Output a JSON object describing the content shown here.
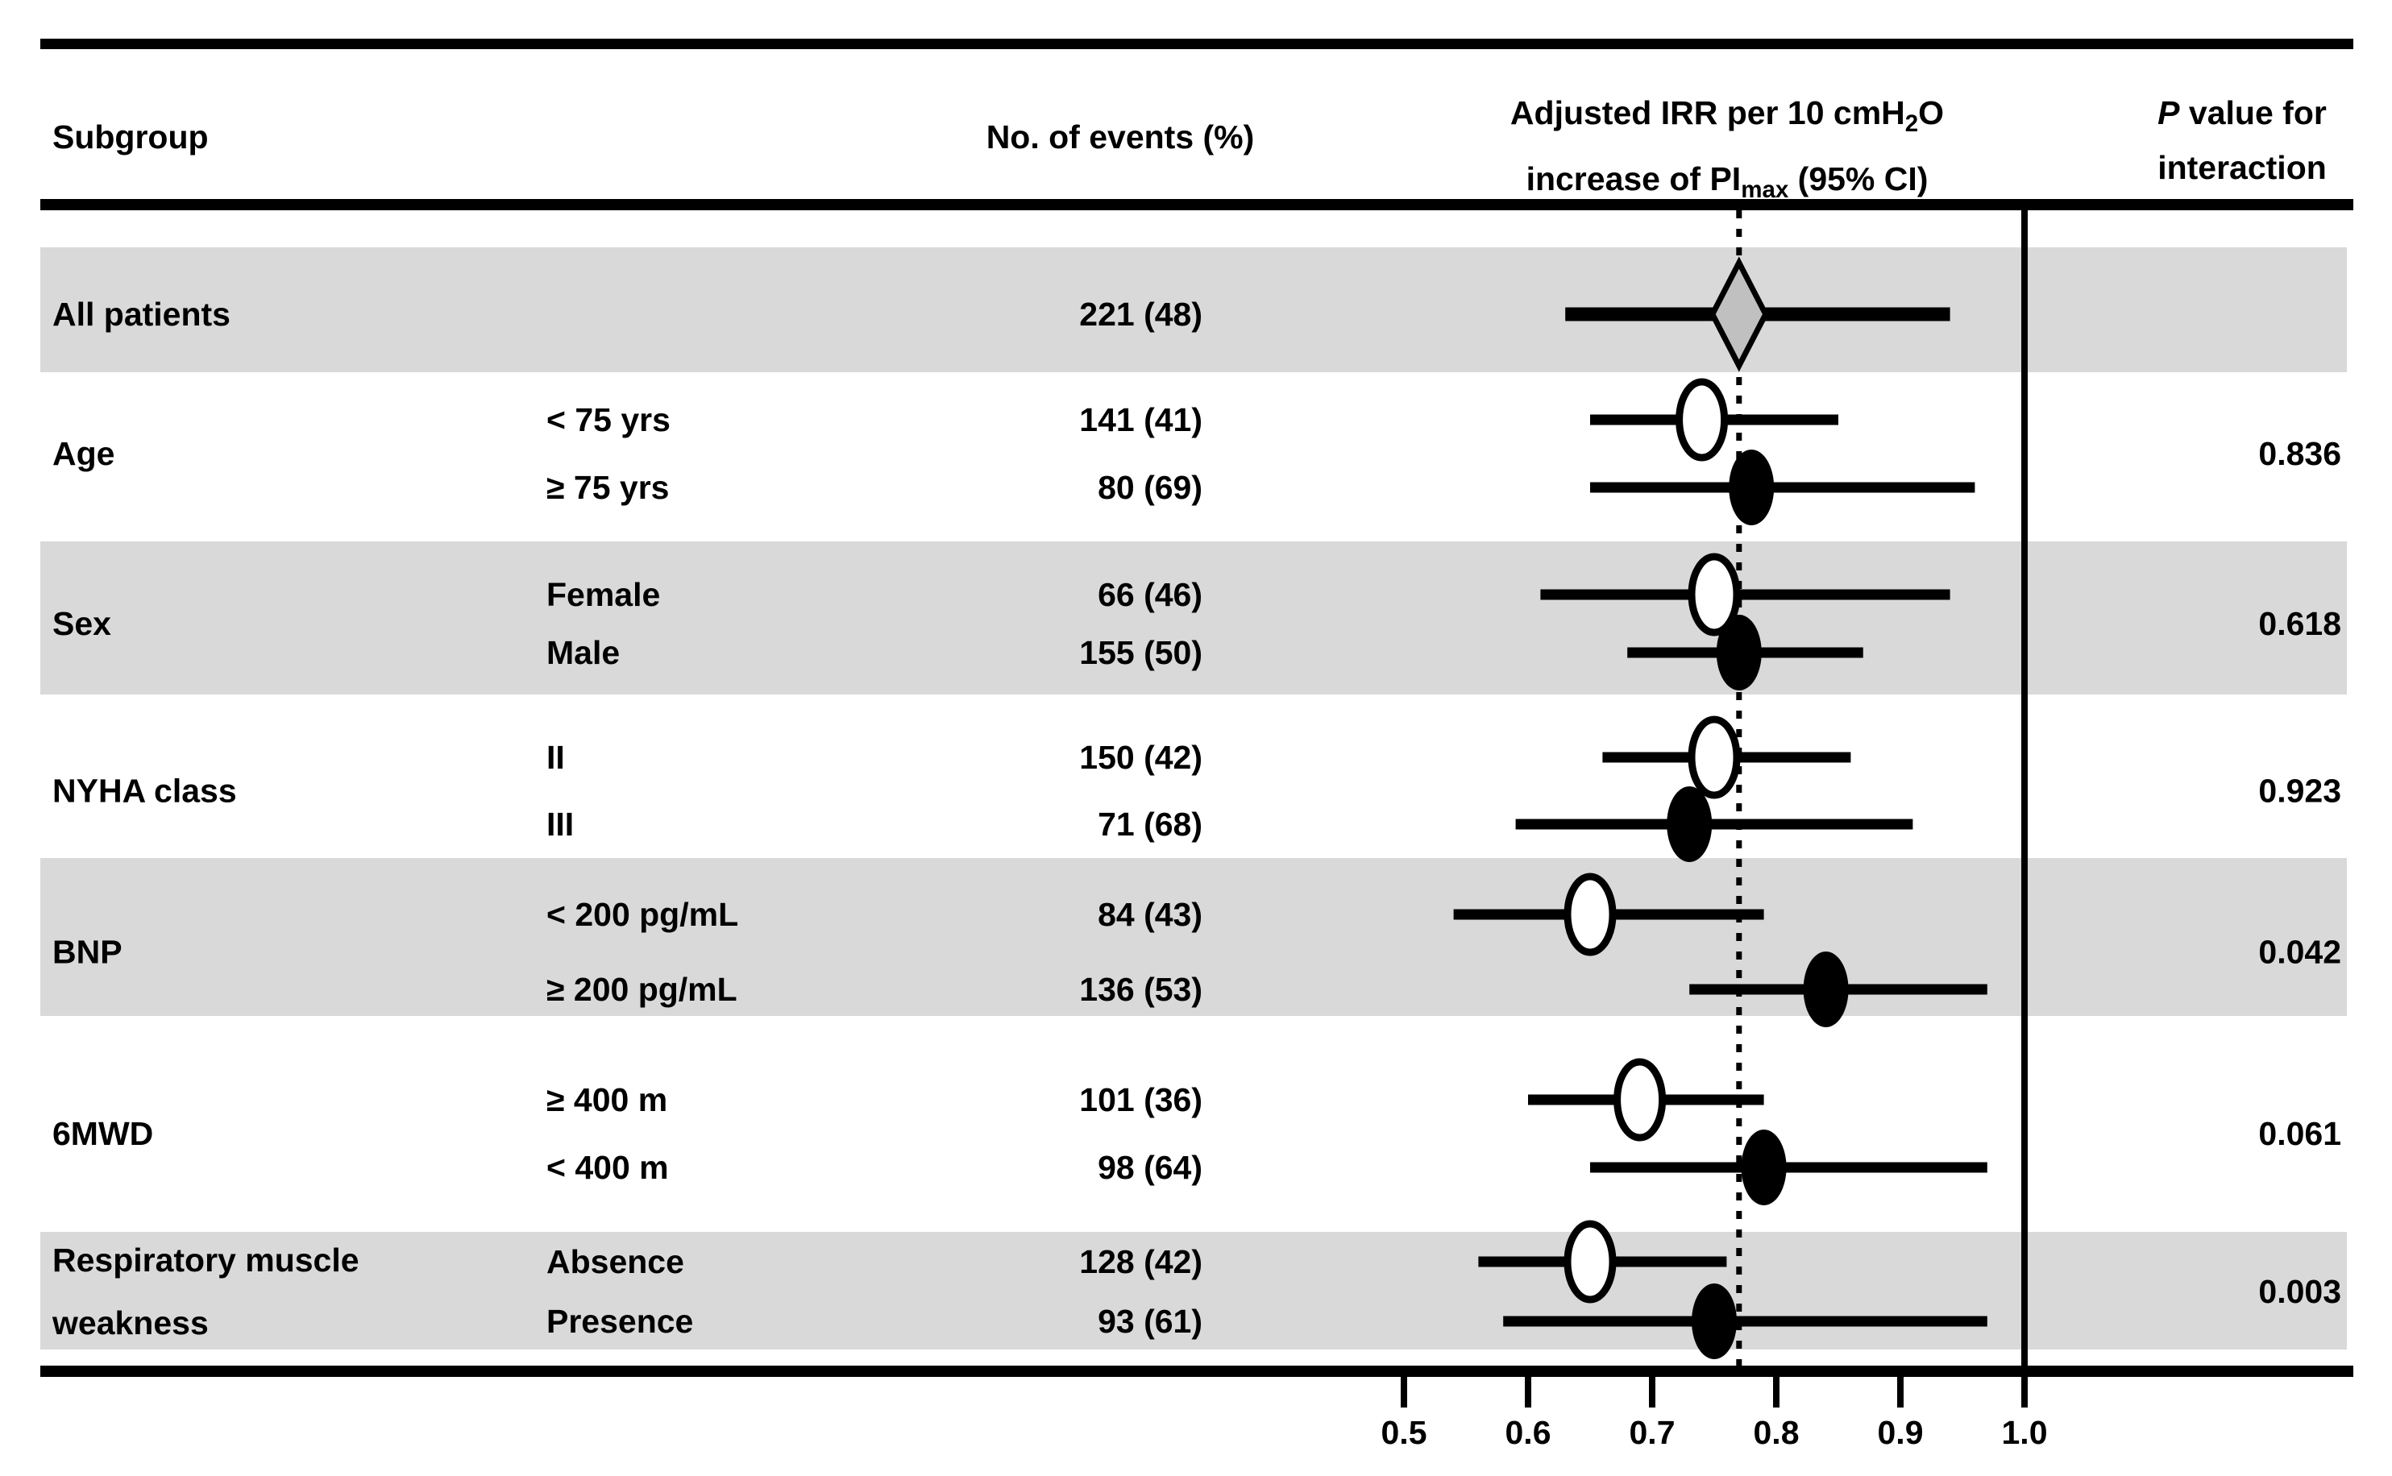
{
  "header": {
    "subgroup": "Subgroup",
    "events": "No. of events (%)",
    "irr_l1_pre": "Adjusted IRR per 10 cmH",
    "irr_l1_sub": "2",
    "irr_l1_post": "O",
    "irr_l2_pre": "increase of PI",
    "irr_l2_sub": "max",
    "irr_l2_post": " (95% CI)",
    "p_l1_italic": "P",
    "p_l1_rest": " value for",
    "p_l2": "interaction"
  },
  "colors": {
    "ink": "#000000",
    "background": "#ffffff",
    "shaded_band": "#d9d9d9",
    "diamond_fill": "#c0c0c0",
    "open_marker_fill": "#ffffff"
  },
  "chart_data": {
    "type": "forest",
    "title": "Adjusted IRR per 10 cmH2O increase of PImax (95% CI) by subgroup",
    "x_axis": {
      "min": 0.5,
      "max": 1.0,
      "ticks": [
        0.5,
        0.6,
        0.7,
        0.8,
        0.9,
        1.0
      ],
      "tick_labels": [
        "0.5",
        "0.6",
        "0.7",
        "0.8",
        "0.9",
        "1.0"
      ],
      "reference_line": 1.0,
      "overall_estimate_line": 0.77
    },
    "groups": [
      {
        "name": "All patients",
        "name_line2": "",
        "p_value": "",
        "shaded": true,
        "rows": [
          {
            "label": "",
            "events": "221 (48)",
            "irr": 0.77,
            "ci_low": 0.63,
            "ci_high": 0.94,
            "marker": "diamond"
          }
        ]
      },
      {
        "name": "Age",
        "name_line2": "",
        "p_value": "0.836",
        "shaded": false,
        "rows": [
          {
            "label": "< 75 yrs",
            "events": "141 (41)",
            "irr": 0.74,
            "ci_low": 0.65,
            "ci_high": 0.85,
            "marker": "open"
          },
          {
            "label": "≥ 75 yrs",
            "events": "80 (69)",
            "irr": 0.78,
            "ci_low": 0.65,
            "ci_high": 0.96,
            "marker": "filled"
          }
        ]
      },
      {
        "name": "Sex",
        "name_line2": "",
        "p_value": "0.618",
        "shaded": true,
        "rows": [
          {
            "label": "Female",
            "events": "66 (46)",
            "irr": 0.75,
            "ci_low": 0.61,
            "ci_high": 0.94,
            "marker": "open"
          },
          {
            "label": "Male",
            "events": "155 (50)",
            "irr": 0.77,
            "ci_low": 0.68,
            "ci_high": 0.87,
            "marker": "filled"
          }
        ]
      },
      {
        "name": "NYHA class",
        "name_line2": "",
        "p_value": "0.923",
        "shaded": false,
        "rows": [
          {
            "label": "II",
            "events": "150 (42)",
            "irr": 0.75,
            "ci_low": 0.66,
            "ci_high": 0.86,
            "marker": "open"
          },
          {
            "label": "III",
            "events": "71 (68)",
            "irr": 0.73,
            "ci_low": 0.59,
            "ci_high": 0.91,
            "marker": "filled"
          }
        ]
      },
      {
        "name": "BNP",
        "name_line2": "",
        "p_value": "0.042",
        "shaded": true,
        "rows": [
          {
            "label": "< 200 pg/mL",
            "events": "84 (43)",
            "irr": 0.65,
            "ci_low": 0.54,
            "ci_high": 0.79,
            "marker": "open"
          },
          {
            "label": "≥ 200 pg/mL",
            "events": "136 (53)",
            "irr": 0.84,
            "ci_low": 0.73,
            "ci_high": 0.97,
            "marker": "filled"
          }
        ]
      },
      {
        "name": "6MWD",
        "name_line2": "",
        "p_value": "0.061",
        "shaded": false,
        "rows": [
          {
            "label": "≥ 400 m",
            "events": "101 (36)",
            "irr": 0.69,
            "ci_low": 0.6,
            "ci_high": 0.79,
            "marker": "open"
          },
          {
            "label": "< 400 m",
            "events": "98 (64)",
            "irr": 0.79,
            "ci_low": 0.65,
            "ci_high": 0.97,
            "marker": "filled"
          }
        ]
      },
      {
        "name": "Respiratory muscle",
        "name_line2": "weakness",
        "p_value": "0.003",
        "shaded": true,
        "rows": [
          {
            "label": "Absence",
            "events": "128 (42)",
            "irr": 0.65,
            "ci_low": 0.56,
            "ci_high": 0.76,
            "marker": "open"
          },
          {
            "label": "Presence",
            "events": "93 (61)",
            "irr": 0.75,
            "ci_low": 0.58,
            "ci_high": 0.97,
            "marker": "filled"
          }
        ]
      }
    ]
  }
}
